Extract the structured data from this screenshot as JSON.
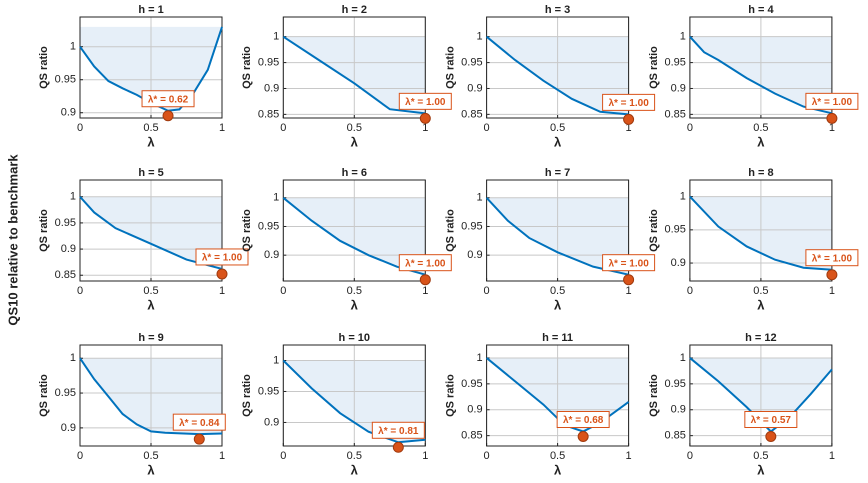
{
  "figure": {
    "ylabel": "QS10 relative to benchmark"
  },
  "chart_data": [
    {
      "type": "line",
      "title": "h = 1",
      "xlabel": "λ",
      "ylabel": "QS ratio",
      "x": [
        0,
        0.1,
        0.2,
        0.3,
        0.4,
        0.5,
        0.62,
        0.7,
        0.8,
        0.9,
        1
      ],
      "values": [
        1,
        0.97,
        0.948,
        0.937,
        0.927,
        0.915,
        0.903,
        0.905,
        0.93,
        0.965,
        1.03
      ],
      "color": "#0072bd",
      "xlim": [
        0,
        1
      ],
      "xticks": [
        0,
        0.5,
        1
      ],
      "ylim": [
        0.892,
        1.045
      ],
      "yticks": [
        0.9,
        0.95,
        1
      ],
      "grid": true,
      "optimum": {
        "x": 0.62,
        "y": 0.903,
        "label": "λ* = 0.62"
      }
    },
    {
      "type": "line",
      "title": "h = 2",
      "xlabel": "λ",
      "ylabel": "QS ratio",
      "x": [
        0,
        0.25,
        0.5,
        0.7,
        0.75,
        1
      ],
      "values": [
        1,
        0.955,
        0.91,
        0.87,
        0.86,
        0.852
      ],
      "color": "#0072bd",
      "xlim": [
        0,
        1
      ],
      "xticks": [
        0,
        0.5,
        1
      ],
      "ylim": [
        0.843,
        1.038
      ],
      "yticks": [
        0.85,
        0.9,
        0.95,
        1
      ],
      "grid": true,
      "optimum": {
        "x": 1,
        "y": 0.852,
        "label": "λ* = 1.00"
      }
    },
    {
      "type": "line",
      "title": "h = 3",
      "xlabel": "λ",
      "ylabel": "QS ratio",
      "x": [
        0,
        0.2,
        0.4,
        0.6,
        0.8,
        1
      ],
      "values": [
        1,
        0.955,
        0.915,
        0.88,
        0.855,
        0.85
      ],
      "color": "#0072bd",
      "xlim": [
        0,
        1
      ],
      "xticks": [
        0,
        0.5,
        1
      ],
      "ylim": [
        0.843,
        1.038
      ],
      "yticks": [
        0.85,
        0.9,
        0.95,
        1
      ],
      "grid": true,
      "optimum": {
        "x": 1,
        "y": 0.85,
        "label": "λ* = 1.00"
      }
    },
    {
      "type": "line",
      "title": "h = 4",
      "xlabel": "λ",
      "ylabel": "QS ratio",
      "x": [
        0,
        0.1,
        0.2,
        0.4,
        0.6,
        0.8,
        1
      ],
      "values": [
        1,
        0.97,
        0.955,
        0.92,
        0.89,
        0.865,
        0.852
      ],
      "color": "#0072bd",
      "xlim": [
        0,
        1
      ],
      "xticks": [
        0,
        0.5,
        1
      ],
      "ylim": [
        0.843,
        1.038
      ],
      "yticks": [
        0.85,
        0.9,
        0.95,
        1
      ],
      "grid": true,
      "optimum": {
        "x": 1,
        "y": 0.852,
        "label": "λ* = 1.00"
      }
    },
    {
      "type": "line",
      "title": "h = 5",
      "xlabel": "λ",
      "ylabel": "QS ratio",
      "x": [
        0,
        0.1,
        0.25,
        0.5,
        0.75,
        1
      ],
      "values": [
        1,
        0.97,
        0.94,
        0.91,
        0.88,
        0.862
      ],
      "color": "#0072bd",
      "xlim": [
        0,
        1
      ],
      "xticks": [
        0,
        0.5,
        1
      ],
      "ylim": [
        0.839,
        1.032
      ],
      "yticks": [
        0.85,
        0.9,
        0.95,
        1
      ],
      "grid": true,
      "optimum": {
        "x": 1,
        "y": 0.862,
        "label": "λ* = 1.00"
      }
    },
    {
      "type": "line",
      "title": "h = 6",
      "xlabel": "λ",
      "ylabel": "QS ratio",
      "x": [
        0,
        0.2,
        0.4,
        0.6,
        0.8,
        1
      ],
      "values": [
        1,
        0.96,
        0.925,
        0.9,
        0.88,
        0.866
      ],
      "color": "#0072bd",
      "xlim": [
        0,
        1
      ],
      "xticks": [
        0,
        0.5,
        1
      ],
      "ylim": [
        0.855,
        1.031
      ],
      "yticks": [
        0.9,
        0.95,
        1
      ],
      "grid": true,
      "optimum": {
        "x": 1,
        "y": 0.866,
        "label": "λ* = 1.00"
      }
    },
    {
      "type": "line",
      "title": "h = 7",
      "xlabel": "λ",
      "ylabel": "QS ratio",
      "x": [
        0,
        0.15,
        0.3,
        0.5,
        0.75,
        1
      ],
      "values": [
        1,
        0.96,
        0.93,
        0.905,
        0.88,
        0.866
      ],
      "color": "#0072bd",
      "xlim": [
        0,
        1
      ],
      "xticks": [
        0,
        0.5,
        1
      ],
      "ylim": [
        0.855,
        1.031
      ],
      "yticks": [
        0.9,
        0.95,
        1
      ],
      "grid": true,
      "optimum": {
        "x": 1,
        "y": 0.866,
        "label": "λ* = 1.00"
      }
    },
    {
      "type": "line",
      "title": "h = 8",
      "xlabel": "λ",
      "ylabel": "QS ratio",
      "x": [
        0,
        0.2,
        0.4,
        0.6,
        0.8,
        1
      ],
      "values": [
        1,
        0.955,
        0.925,
        0.905,
        0.893,
        0.89
      ],
      "color": "#0072bd",
      "xlim": [
        0,
        1
      ],
      "xticks": [
        0,
        0.5,
        1
      ],
      "ylim": [
        0.873,
        1.025
      ],
      "yticks": [
        0.9,
        0.95,
        1
      ],
      "grid": true,
      "optimum": {
        "x": 1,
        "y": 0.89,
        "label": "λ* = 1.00"
      }
    },
    {
      "type": "line",
      "title": "h = 9",
      "xlabel": "λ",
      "ylabel": "QS ratio",
      "x": [
        0,
        0.1,
        0.2,
        0.3,
        0.4,
        0.5,
        0.6,
        0.84,
        1
      ],
      "values": [
        1,
        0.97,
        0.945,
        0.92,
        0.905,
        0.895,
        0.893,
        0.891,
        0.892
      ],
      "color": "#0072bd",
      "xlim": [
        0,
        1
      ],
      "xticks": [
        0,
        0.5,
        1
      ],
      "ylim": [
        0.874,
        1.019
      ],
      "yticks": [
        0.9,
        0.95,
        1
      ],
      "grid": true,
      "optimum": {
        "x": 0.84,
        "y": 0.891,
        "label": "λ* = 0.84"
      }
    },
    {
      "type": "line",
      "title": "h = 10",
      "xlabel": "λ",
      "ylabel": "QS ratio",
      "x": [
        0,
        0.2,
        0.4,
        0.6,
        0.81,
        1
      ],
      "values": [
        1,
        0.955,
        0.915,
        0.885,
        0.868,
        0.872
      ],
      "color": "#0072bd",
      "xlim": [
        0,
        1
      ],
      "xticks": [
        0,
        0.5,
        1
      ],
      "ylim": [
        0.862,
        1.025
      ],
      "yticks": [
        0.9,
        0.95,
        1
      ],
      "grid": true,
      "optimum": {
        "x": 0.81,
        "y": 0.868,
        "label": "λ* = 0.81"
      }
    },
    {
      "type": "line",
      "title": "h = 11",
      "xlabel": "λ",
      "ylabel": "QS ratio",
      "x": [
        0,
        0.2,
        0.4,
        0.55,
        0.68,
        0.8,
        1
      ],
      "values": [
        1,
        0.955,
        0.91,
        0.87,
        0.858,
        0.875,
        0.915
      ],
      "color": "#0072bd",
      "xlim": [
        0,
        1
      ],
      "xticks": [
        0,
        0.5,
        1
      ],
      "ylim": [
        0.83,
        1.025
      ],
      "yticks": [
        0.85,
        0.9,
        0.95,
        1
      ],
      "grid": true,
      "optimum": {
        "x": 0.68,
        "y": 0.858,
        "label": "λ* = 0.68"
      }
    },
    {
      "type": "line",
      "title": "h = 12",
      "xlabel": "λ",
      "ylabel": "QS ratio",
      "x": [
        0,
        0.2,
        0.4,
        0.57,
        0.7,
        0.85,
        1
      ],
      "values": [
        1,
        0.955,
        0.905,
        0.858,
        0.885,
        0.93,
        0.978
      ],
      "color": "#0072bd",
      "xlim": [
        0,
        1
      ],
      "xticks": [
        0,
        0.5,
        1
      ],
      "ylim": [
        0.83,
        1.025
      ],
      "yticks": [
        0.85,
        0.9,
        0.95,
        1
      ],
      "grid": true,
      "optimum": {
        "x": 0.57,
        "y": 0.858,
        "label": "λ* = 0.57"
      }
    }
  ]
}
